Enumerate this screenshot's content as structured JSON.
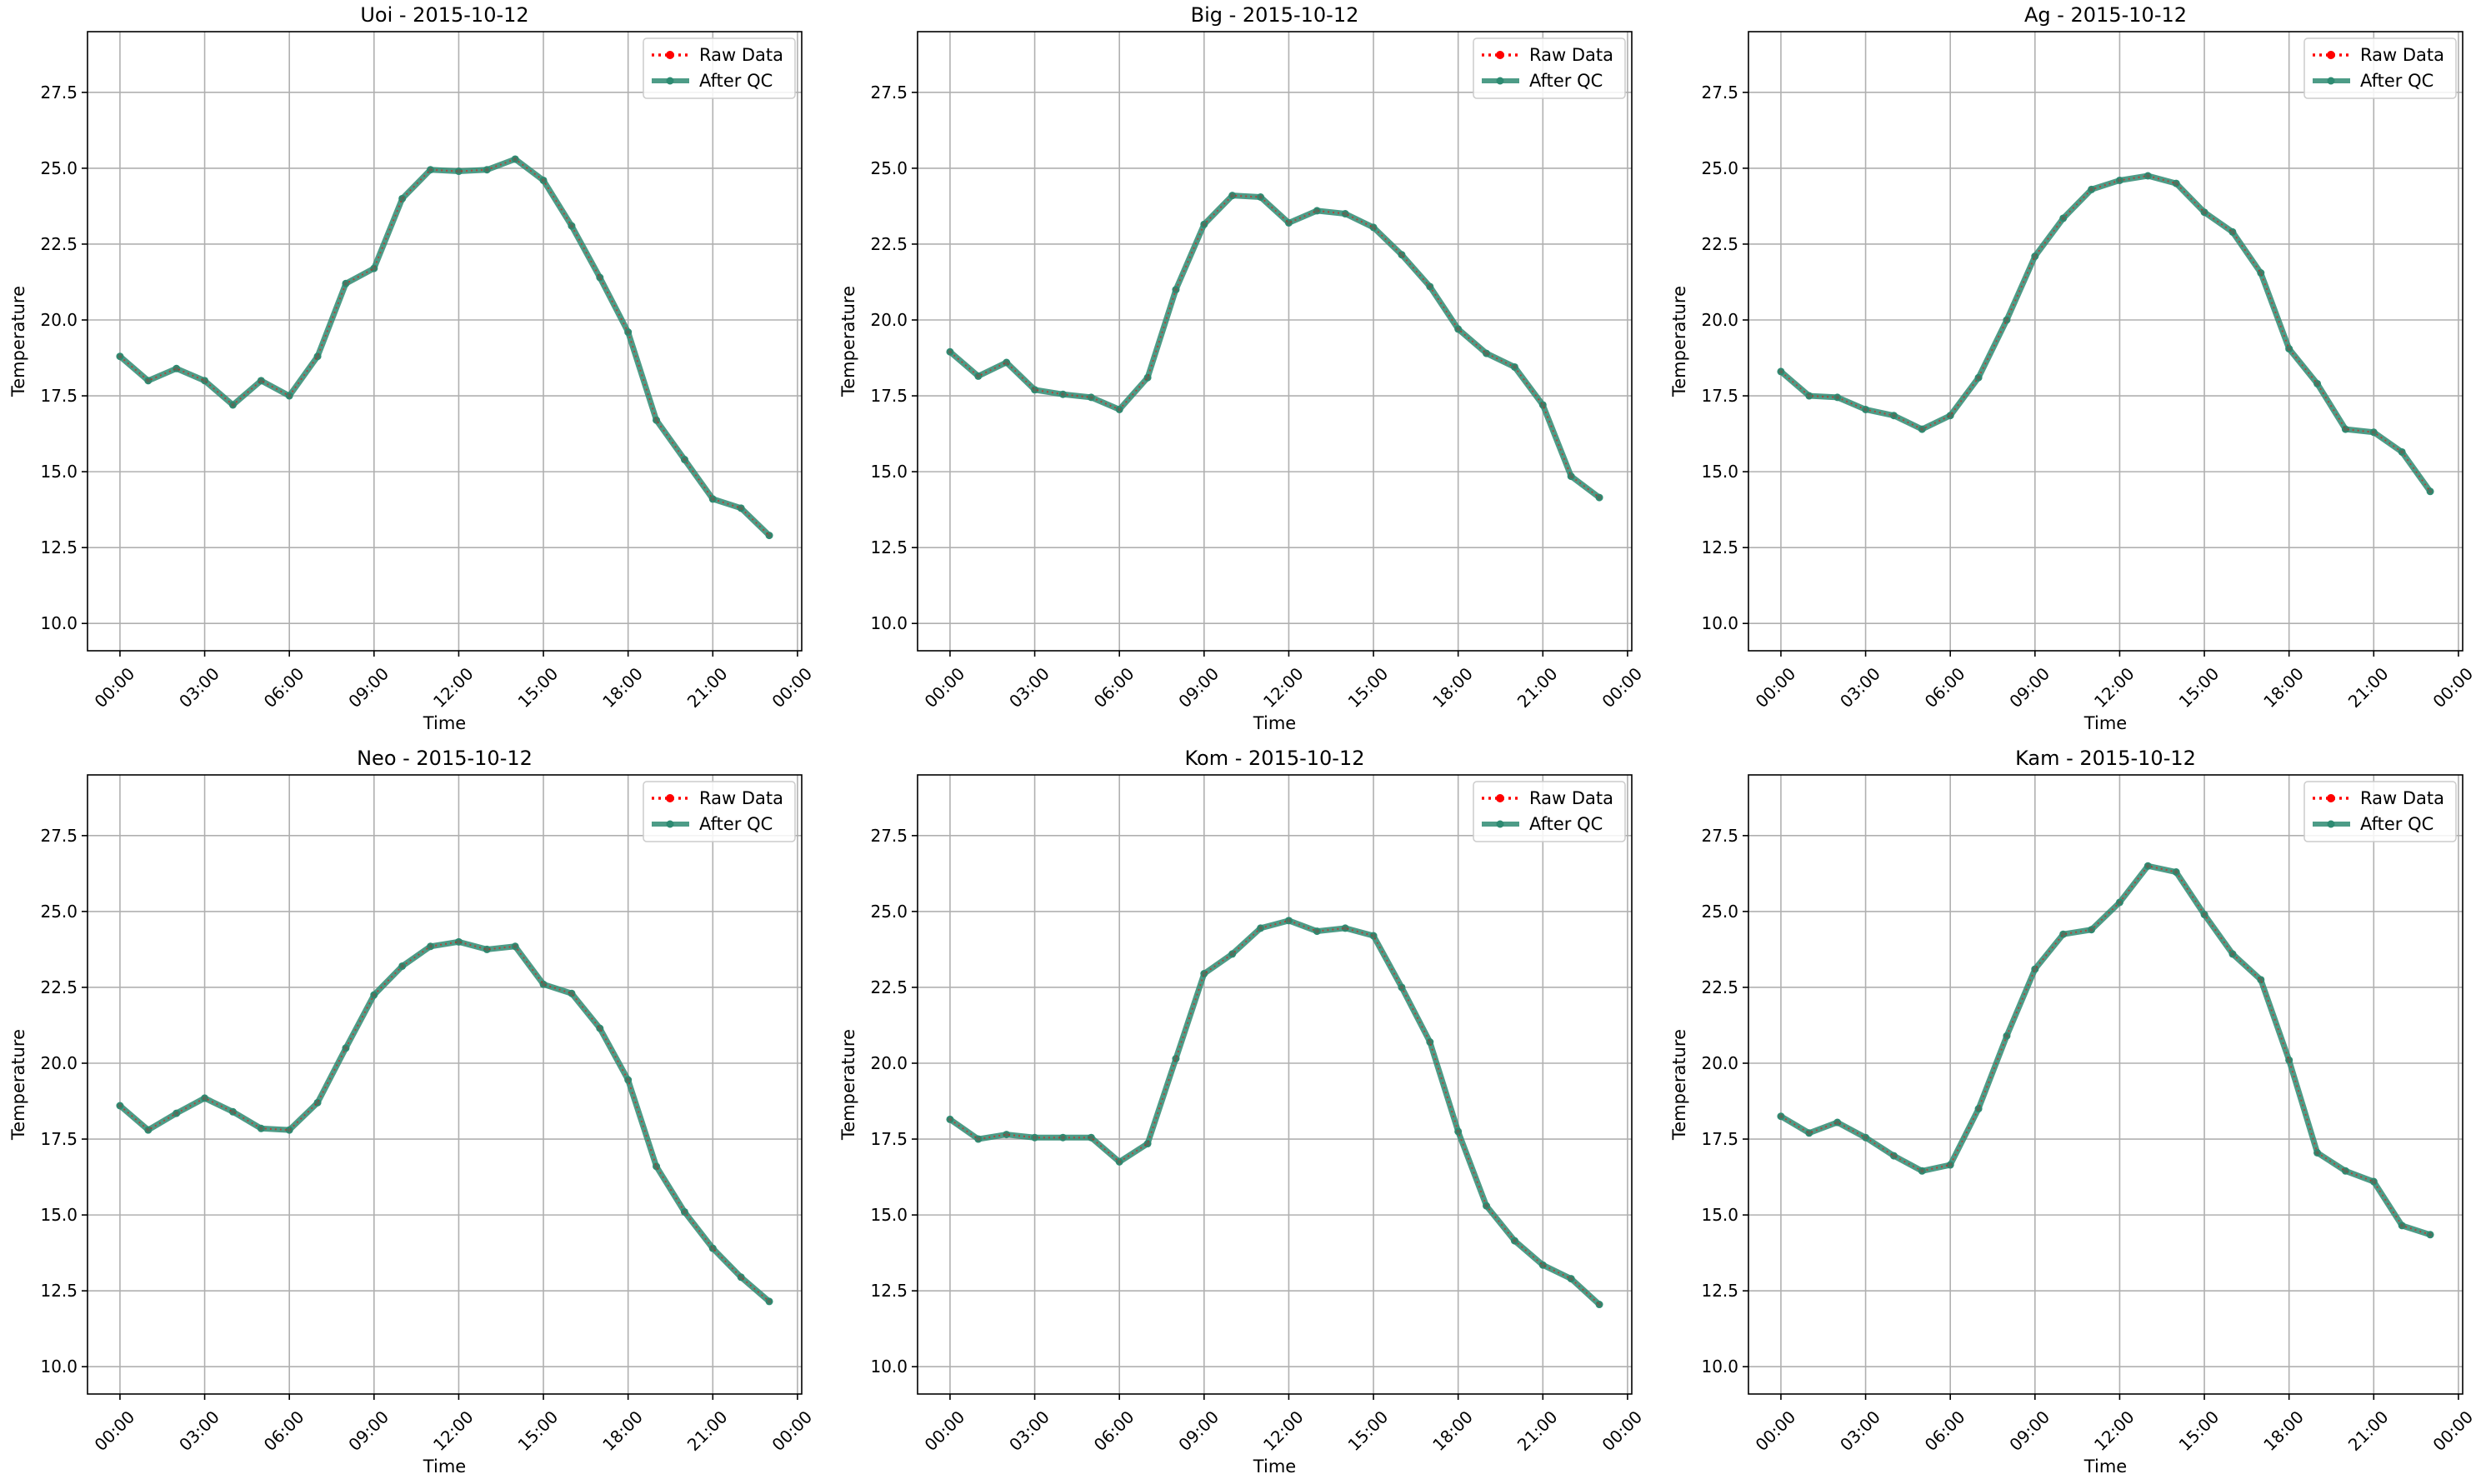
{
  "figure": {
    "background": "#ffffff"
  },
  "colors": {
    "raw": "#ff0000",
    "qc": "#2e8b72",
    "grid": "#b0b0b0"
  },
  "chart_data": [
    {
      "type": "line",
      "title": "Uoi - 2015-10-12",
      "xlabel": "Time",
      "ylabel": "Temperature",
      "x_unit": "hour",
      "x_ticks": [
        "00:00",
        "03:00",
        "06:00",
        "09:00",
        "12:00",
        "15:00",
        "18:00",
        "21:00",
        "00:00"
      ],
      "x_tick_hours": [
        0,
        3,
        6,
        9,
        12,
        15,
        18,
        21,
        24
      ],
      "xlim": [
        -1.15,
        24.15
      ],
      "y_ticks": [
        "10.0",
        "12.5",
        "15.0",
        "17.5",
        "20.0",
        "22.5",
        "25.0",
        "27.5"
      ],
      "ylim": [
        9.1,
        29.5
      ],
      "grid": true,
      "legend_placement": "top-right",
      "x": [
        0,
        1,
        2,
        3,
        4,
        5,
        6,
        7,
        8,
        9,
        10,
        11,
        12,
        13,
        14,
        15,
        16,
        17,
        18,
        19,
        20,
        21,
        22,
        23
      ],
      "series": [
        {
          "name": "Raw Data",
          "style": "dotted",
          "values": [
            18.8,
            18.0,
            18.4,
            18.0,
            17.2,
            18.0,
            17.5,
            18.8,
            21.2,
            21.7,
            24.0,
            24.95,
            24.9,
            24.95,
            25.3,
            24.6,
            23.1,
            21.4,
            19.6,
            16.7,
            15.4,
            14.1,
            13.8,
            12.9
          ]
        },
        {
          "name": "After QC",
          "style": "solid",
          "values": [
            18.8,
            18.0,
            18.4,
            18.0,
            17.2,
            18.0,
            17.5,
            18.8,
            21.2,
            21.7,
            24.0,
            24.95,
            24.9,
            24.95,
            25.3,
            24.6,
            23.1,
            21.4,
            19.6,
            16.7,
            15.4,
            14.1,
            13.8,
            12.9
          ]
        }
      ]
    },
    {
      "type": "line",
      "title": "Big - 2015-10-12",
      "xlabel": "Time",
      "ylabel": "Temperature",
      "x_unit": "hour",
      "x_ticks": [
        "00:00",
        "03:00",
        "06:00",
        "09:00",
        "12:00",
        "15:00",
        "18:00",
        "21:00",
        "00:00"
      ],
      "x_tick_hours": [
        0,
        3,
        6,
        9,
        12,
        15,
        18,
        21,
        24
      ],
      "xlim": [
        -1.15,
        24.15
      ],
      "y_ticks": [
        "10.0",
        "12.5",
        "15.0",
        "17.5",
        "20.0",
        "22.5",
        "25.0",
        "27.5"
      ],
      "ylim": [
        9.1,
        29.5
      ],
      "grid": true,
      "legend_placement": "top-right",
      "x": [
        0,
        1,
        2,
        3,
        4,
        5,
        6,
        7,
        8,
        9,
        10,
        11,
        12,
        13,
        14,
        15,
        16,
        17,
        18,
        19,
        20,
        21,
        22,
        23
      ],
      "series": [
        {
          "name": "Raw Data",
          "style": "dotted",
          "values": [
            18.95,
            18.15,
            18.6,
            17.7,
            17.55,
            17.45,
            17.05,
            18.1,
            21.0,
            23.15,
            24.1,
            24.05,
            23.2,
            23.6,
            23.5,
            23.05,
            22.15,
            21.1,
            19.7,
            18.9,
            18.45,
            17.2,
            14.85,
            14.15
          ]
        },
        {
          "name": "After QC",
          "style": "solid",
          "values": [
            18.95,
            18.15,
            18.6,
            17.7,
            17.55,
            17.45,
            17.05,
            18.1,
            21.0,
            23.15,
            24.1,
            24.05,
            23.2,
            23.6,
            23.5,
            23.05,
            22.15,
            21.1,
            19.7,
            18.9,
            18.45,
            17.2,
            14.85,
            14.15
          ]
        }
      ]
    },
    {
      "type": "line",
      "title": "Ag - 2015-10-12",
      "xlabel": "Time",
      "ylabel": "Temperature",
      "x_unit": "hour",
      "x_ticks": [
        "00:00",
        "03:00",
        "06:00",
        "09:00",
        "12:00",
        "15:00",
        "18:00",
        "21:00",
        "00:00"
      ],
      "x_tick_hours": [
        0,
        3,
        6,
        9,
        12,
        15,
        18,
        21,
        24
      ],
      "xlim": [
        -1.15,
        24.15
      ],
      "y_ticks": [
        "10.0",
        "12.5",
        "15.0",
        "17.5",
        "20.0",
        "22.5",
        "25.0",
        "27.5"
      ],
      "ylim": [
        9.1,
        29.5
      ],
      "grid": true,
      "legend_placement": "top-right",
      "x": [
        0,
        1,
        2,
        3,
        4,
        5,
        6,
        7,
        8,
        9,
        10,
        11,
        12,
        13,
        14,
        15,
        16,
        17,
        18,
        19,
        20,
        21,
        22,
        23
      ],
      "series": [
        {
          "name": "Raw Data",
          "style": "dotted",
          "values": [
            18.3,
            17.5,
            17.45,
            17.05,
            16.85,
            16.4,
            16.85,
            18.1,
            20.0,
            22.1,
            23.35,
            24.3,
            24.6,
            24.75,
            24.5,
            23.55,
            22.9,
            21.55,
            19.05,
            17.9,
            16.4,
            16.3,
            15.65,
            14.35
          ]
        },
        {
          "name": "After QC",
          "style": "solid",
          "values": [
            18.3,
            17.5,
            17.45,
            17.05,
            16.85,
            16.4,
            16.85,
            18.1,
            20.0,
            22.1,
            23.35,
            24.3,
            24.6,
            24.75,
            24.5,
            23.55,
            22.9,
            21.55,
            19.05,
            17.9,
            16.4,
            16.3,
            15.65,
            14.35
          ]
        }
      ]
    },
    {
      "type": "line",
      "title": "Neo - 2015-10-12",
      "xlabel": "Time",
      "ylabel": "Temperature",
      "x_unit": "hour",
      "x_ticks": [
        "00:00",
        "03:00",
        "06:00",
        "09:00",
        "12:00",
        "15:00",
        "18:00",
        "21:00",
        "00:00"
      ],
      "x_tick_hours": [
        0,
        3,
        6,
        9,
        12,
        15,
        18,
        21,
        24
      ],
      "xlim": [
        -1.15,
        24.15
      ],
      "y_ticks": [
        "10.0",
        "12.5",
        "15.0",
        "17.5",
        "20.0",
        "22.5",
        "25.0",
        "27.5"
      ],
      "ylim": [
        9.1,
        29.5
      ],
      "grid": true,
      "legend_placement": "top-right",
      "x": [
        0,
        1,
        2,
        3,
        4,
        5,
        6,
        7,
        8,
        9,
        10,
        11,
        12,
        13,
        14,
        15,
        16,
        17,
        18,
        19,
        20,
        21,
        22,
        23
      ],
      "series": [
        {
          "name": "Raw Data",
          "style": "dotted",
          "values": [
            18.6,
            17.8,
            18.35,
            18.85,
            18.4,
            17.85,
            17.8,
            18.7,
            20.5,
            22.25,
            23.2,
            23.85,
            24.0,
            23.75,
            23.85,
            22.6,
            22.3,
            21.15,
            19.45,
            16.6,
            15.1,
            13.9,
            12.95,
            12.15
          ]
        },
        {
          "name": "After QC",
          "style": "solid",
          "values": [
            18.6,
            17.8,
            18.35,
            18.85,
            18.4,
            17.85,
            17.8,
            18.7,
            20.5,
            22.25,
            23.2,
            23.85,
            24.0,
            23.75,
            23.85,
            22.6,
            22.3,
            21.15,
            19.45,
            16.6,
            15.1,
            13.9,
            12.95,
            12.15
          ]
        }
      ]
    },
    {
      "type": "line",
      "title": "Kom - 2015-10-12",
      "xlabel": "Time",
      "ylabel": "Temperature",
      "x_unit": "hour",
      "x_ticks": [
        "00:00",
        "03:00",
        "06:00",
        "09:00",
        "12:00",
        "15:00",
        "18:00",
        "21:00",
        "00:00"
      ],
      "x_tick_hours": [
        0,
        3,
        6,
        9,
        12,
        15,
        18,
        21,
        24
      ],
      "xlim": [
        -1.15,
        24.15
      ],
      "y_ticks": [
        "10.0",
        "12.5",
        "15.0",
        "17.5",
        "20.0",
        "22.5",
        "25.0",
        "27.5"
      ],
      "ylim": [
        9.1,
        29.5
      ],
      "grid": true,
      "legend_placement": "top-right",
      "x": [
        0,
        1,
        2,
        3,
        4,
        5,
        6,
        7,
        8,
        9,
        10,
        11,
        12,
        13,
        14,
        15,
        16,
        17,
        18,
        19,
        20,
        21,
        22,
        23
      ],
      "series": [
        {
          "name": "Raw Data",
          "style": "dotted",
          "values": [
            18.15,
            17.5,
            17.65,
            17.55,
            17.55,
            17.55,
            16.75,
            17.35,
            20.15,
            22.95,
            23.6,
            24.45,
            24.7,
            24.35,
            24.45,
            24.2,
            22.5,
            20.7,
            17.75,
            15.3,
            14.15,
            13.35,
            12.9,
            12.05
          ]
        },
        {
          "name": "After QC",
          "style": "solid",
          "values": [
            18.15,
            17.5,
            17.65,
            17.55,
            17.55,
            17.55,
            16.75,
            17.35,
            20.15,
            22.95,
            23.6,
            24.45,
            24.7,
            24.35,
            24.45,
            24.2,
            22.5,
            20.7,
            17.75,
            15.3,
            14.15,
            13.35,
            12.9,
            12.05
          ]
        }
      ]
    },
    {
      "type": "line",
      "title": "Kam - 2015-10-12",
      "xlabel": "Time",
      "ylabel": "Temperature",
      "x_unit": "hour",
      "x_ticks": [
        "00:00",
        "03:00",
        "06:00",
        "09:00",
        "12:00",
        "15:00",
        "18:00",
        "21:00",
        "00:00"
      ],
      "x_tick_hours": [
        0,
        3,
        6,
        9,
        12,
        15,
        18,
        21,
        24
      ],
      "xlim": [
        -1.15,
        24.15
      ],
      "y_ticks": [
        "10.0",
        "12.5",
        "15.0",
        "17.5",
        "20.0",
        "22.5",
        "25.0",
        "27.5"
      ],
      "ylim": [
        9.1,
        29.5
      ],
      "grid": true,
      "legend_placement": "top-right",
      "x": [
        0,
        1,
        2,
        3,
        4,
        5,
        6,
        7,
        8,
        9,
        10,
        11,
        12,
        13,
        14,
        15,
        16,
        17,
        18,
        19,
        20,
        21,
        22,
        23
      ],
      "series": [
        {
          "name": "Raw Data",
          "style": "dotted",
          "values": [
            18.25,
            17.7,
            18.05,
            17.55,
            16.95,
            16.45,
            16.65,
            18.5,
            20.9,
            23.1,
            24.25,
            24.4,
            25.3,
            26.5,
            26.3,
            24.9,
            23.6,
            22.75,
            20.1,
            17.05,
            16.45,
            16.1,
            14.65,
            14.35
          ]
        },
        {
          "name": "After QC",
          "style": "solid",
          "values": [
            18.25,
            17.7,
            18.05,
            17.55,
            16.95,
            16.45,
            16.65,
            18.5,
            20.9,
            23.1,
            24.25,
            24.4,
            25.3,
            26.5,
            26.3,
            24.9,
            23.6,
            22.75,
            20.1,
            17.05,
            16.45,
            16.1,
            14.65,
            14.35
          ]
        }
      ]
    }
  ]
}
